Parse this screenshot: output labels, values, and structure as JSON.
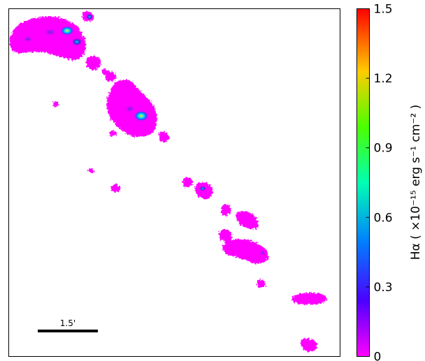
{
  "image": {
    "background_color": "#ffffff",
    "emission_map": {
      "base_color": "#ff00ff",
      "peak_colors": [
        "#3a2ad8",
        "#1a7bff",
        "#00e5ff",
        "#ffee00"
      ]
    },
    "scale_bar": {
      "label": "1.5'"
    },
    "colorbar": {
      "title": "Hα ( ×10⁻¹⁵ erg s⁻¹ cm⁻² )",
      "ticks": [
        "0",
        "0.3",
        "0.6",
        "0.9",
        "1.2",
        "1.5"
      ],
      "value_range": [
        0,
        1.5
      ],
      "colormap": "gist_rainbow_r",
      "colors": [
        "#ff00ff",
        "#4c00ff",
        "#007fff",
        "#00ffb2",
        "#4cff00",
        "#ffcc00",
        "#ff0000"
      ]
    }
  }
}
